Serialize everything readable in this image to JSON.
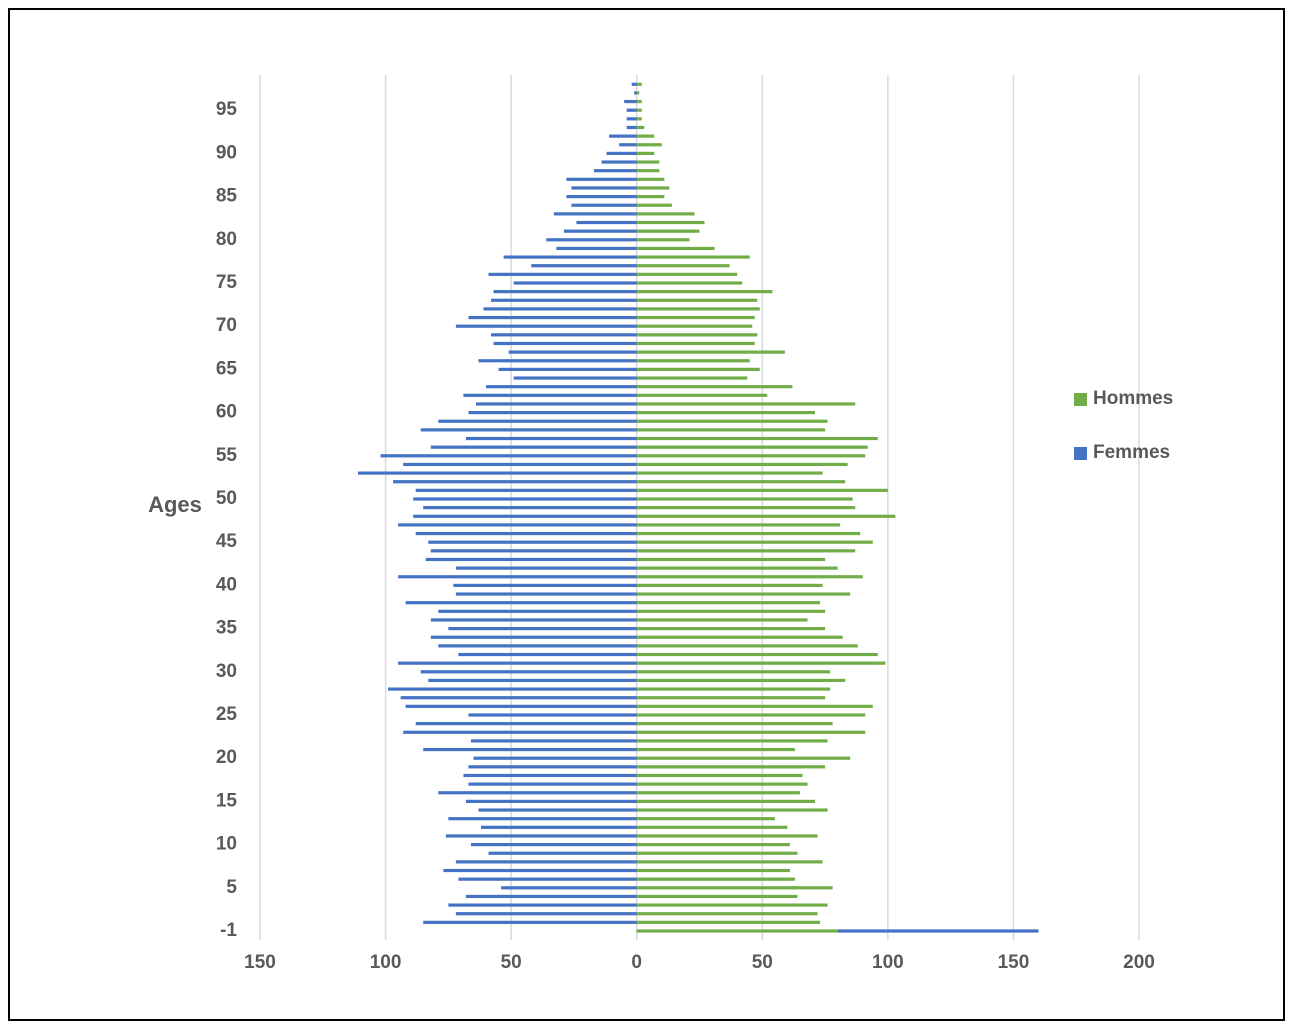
{
  "chart_data": {
    "type": "bar",
    "orientation": "horizontal",
    "stacked": true,
    "ylabel": "Ages",
    "categories": [
      -1,
      null,
      null,
      null,
      null,
      5,
      null,
      null,
      null,
      null,
      10,
      null,
      null,
      null,
      null,
      15,
      null,
      null,
      null,
      null,
      20,
      null,
      null,
      null,
      null,
      25,
      null,
      null,
      null,
      null,
      30,
      null,
      null,
      null,
      null,
      35,
      null,
      null,
      null,
      null,
      40,
      null,
      null,
      null,
      null,
      45,
      null,
      null,
      null,
      null,
      50,
      null,
      null,
      null,
      null,
      55,
      null,
      null,
      null,
      null,
      60,
      null,
      null,
      null,
      null,
      65,
      null,
      null,
      null,
      null,
      70,
      null,
      null,
      null,
      null,
      75,
      null,
      null,
      null,
      null,
      80,
      null,
      null,
      null,
      null,
      85,
      null,
      null,
      null,
      null,
      90,
      null,
      null,
      null,
      null,
      95,
      null,
      null,
      null
    ],
    "series": [
      {
        "name": "Hommes",
        "color": "#70ad47",
        "values": [
          80,
          73,
          72,
          76,
          64,
          78,
          63,
          61,
          74,
          64,
          61,
          72,
          60,
          55,
          76,
          71,
          65,
          68,
          66,
          75,
          85,
          63,
          76,
          91,
          78,
          91,
          94,
          75,
          77,
          83,
          77,
          99,
          96,
          88,
          82,
          75,
          68,
          75,
          73,
          85,
          74,
          90,
          80,
          75,
          87,
          94,
          89,
          81,
          103,
          87,
          86,
          100,
          83,
          74,
          84,
          91,
          92,
          96,
          75,
          76,
          71,
          87,
          52,
          62,
          44,
          49,
          45,
          59,
          47,
          48,
          46,
          47,
          49,
          48,
          54,
          42,
          40,
          37,
          45,
          31,
          21,
          25,
          27,
          23,
          14,
          11,
          13,
          11,
          9,
          9,
          7,
          10,
          7,
          3,
          2,
          2,
          2,
          1,
          2
        ]
      },
      {
        "name": "Femmes",
        "color": "#4472c4",
        "values": [
          80,
          -85,
          -72,
          -75,
          -68,
          -54,
          -71,
          -77,
          -72,
          -59,
          -66,
          -76,
          -62,
          -75,
          -63,
          -68,
          -79,
          -67,
          -69,
          -67,
          -65,
          -85,
          -66,
          -93,
          -88,
          -67,
          -92,
          -94,
          -99,
          -83,
          -86,
          -95,
          -71,
          -79,
          -82,
          -75,
          -82,
          -79,
          -92,
          -72,
          -73,
          -95,
          -72,
          -84,
          -82,
          -83,
          -88,
          -95,
          -89,
          -85,
          -89,
          -88,
          -97,
          -111,
          -93,
          -102,
          -82,
          -68,
          -86,
          -79,
          -67,
          -64,
          -69,
          -60,
          -49,
          -55,
          -63,
          -51,
          -57,
          -58,
          -72,
          -67,
          -61,
          -58,
          -57,
          -49,
          -59,
          -42,
          -53,
          -32,
          -36,
          -29,
          -24,
          -33,
          -26,
          -28,
          -26,
          -28,
          -17,
          -14,
          -12,
          -7,
          -11,
          -4,
          -4,
          -4,
          -5,
          -1,
          -2
        ]
      }
    ],
    "xlim": [
      -150,
      200
    ],
    "xticks": [
      {
        "value": -150,
        "label": "150"
      },
      {
        "value": -100,
        "label": "100"
      },
      {
        "value": -50,
        "label": "50"
      },
      0,
      50,
      100,
      150,
      200
    ],
    "grid": true,
    "legend": "right"
  }
}
